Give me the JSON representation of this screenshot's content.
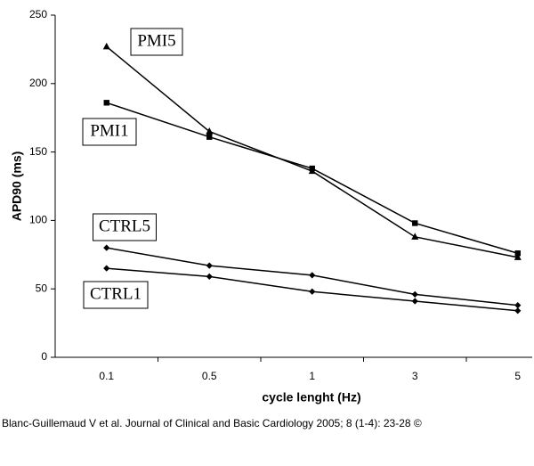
{
  "chart_data": {
    "type": "line",
    "x_label": "cycle lenght (Hz)",
    "y_label": "APD90 (ms)",
    "categories": [
      "0.1",
      "0.5",
      "1",
      "3",
      "5"
    ],
    "series": [
      {
        "name": "PMI5",
        "color": "#000000",
        "marker": "triangle",
        "values": [
          227,
          165,
          136,
          88,
          73
        ]
      },
      {
        "name": "PMI1",
        "color": "#000000",
        "marker": "square",
        "values": [
          186,
          161,
          138,
          98,
          76
        ]
      },
      {
        "name": "CTRL5",
        "color": "#000000",
        "marker": "diamond",
        "values": [
          80,
          67,
          60,
          46,
          38
        ]
      },
      {
        "name": "CTRL1",
        "color": "#000000",
        "marker": "diamond",
        "values": [
          65,
          59,
          48,
          41,
          34
        ]
      }
    ],
    "ylim": [
      0,
      250
    ],
    "yticks": [
      0,
      50,
      100,
      150,
      200,
      250
    ],
    "grid": false
  },
  "caption": "Blanc-Guillemaud V et al. Journal of Clinical and Basic Cardiology 2005; 8 (1-4): 23-28 ©"
}
